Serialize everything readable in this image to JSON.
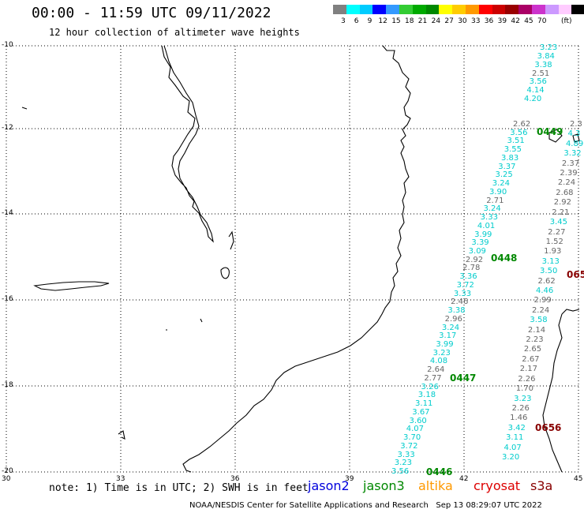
{
  "title": "00:00 - 11:59 UTC 09/11/2022",
  "subtitle": "12 hour collection of altimeter wave heights",
  "note": "note: 1) Time is in UTC; 2) SWH is in feet",
  "footer": "NOAA/NESDIS Center for Satellite Applications and Research   Sep 13 08:29:07 UTC 2022",
  "satellites": [
    {
      "name": "jason2",
      "color": "#0000dd"
    },
    {
      "name": "jason3",
      "color": "#008800"
    },
    {
      "name": "altika",
      "color": "#ff9900"
    },
    {
      "name": "cryosat",
      "color": "#dd0000"
    },
    {
      "name": "s3a",
      "color": "#880000"
    }
  ],
  "legend": {
    "unit": "(ft)",
    "colors": [
      "#808080",
      "#00ffff",
      "#00ccff",
      "#0000ff",
      "#3399ff",
      "#33cc33",
      "#00aa00",
      "#008800",
      "#ffff00",
      "#ffcc00",
      "#ff9900",
      "#ff0000",
      "#cc0000",
      "#990000",
      "#aa0066",
      "#cc33cc",
      "#cc99ff",
      "#ffccff",
      "#000000"
    ],
    "labels": [
      "3",
      "6",
      "9",
      "12",
      "15",
      "18",
      "21",
      "24",
      "27",
      "30",
      "33",
      "36",
      "39",
      "42",
      "45",
      "70"
    ]
  },
  "lat_labels": [
    "-10",
    "-12",
    "-14",
    "-16",
    "-18",
    "-20"
  ],
  "lon_labels": [
    "30",
    "33",
    "36",
    "39",
    "42",
    "45"
  ],
  "passes": [
    {
      "id": "0449",
      "color": "#008800"
    },
    {
      "id": "0448",
      "color": "#008800"
    },
    {
      "id": "0447",
      "color": "#008800"
    },
    {
      "id": "0446",
      "color": "#008800"
    },
    {
      "id": "0656",
      "color": "#880000"
    },
    {
      "id": "065",
      "color": "#880000"
    }
  ],
  "track_a": [
    {
      "v": "3.23",
      "c": "#00cccc"
    },
    {
      "v": "3.84",
      "c": "#00cccc"
    },
    {
      "v": "3.38",
      "c": "#00cccc"
    },
    {
      "v": "2.51",
      "c": "#666666"
    },
    {
      "v": "3.56",
      "c": "#00cccc"
    },
    {
      "v": "4.14",
      "c": "#00cccc"
    },
    {
      "v": "4.20",
      "c": "#00cccc"
    }
  ],
  "track_b": [
    {
      "v": "2.62",
      "c": "#666666"
    },
    {
      "v": "3.56",
      "c": "#00cccc"
    },
    {
      "v": "3.51",
      "c": "#00cccc"
    },
    {
      "v": "3.55",
      "c": "#00cccc"
    },
    {
      "v": "3.83",
      "c": "#00cccc"
    },
    {
      "v": "3.37",
      "c": "#00cccc"
    },
    {
      "v": "3.25",
      "c": "#00cccc"
    },
    {
      "v": "3.24",
      "c": "#00cccc"
    },
    {
      "v": "3.90",
      "c": "#00cccc"
    },
    {
      "v": "2.71",
      "c": "#666666"
    },
    {
      "v": "3.24",
      "c": "#00cccc"
    },
    {
      "v": "3.33",
      "c": "#00cccc"
    },
    {
      "v": "4.01",
      "c": "#00cccc"
    },
    {
      "v": "3.99",
      "c": "#00cccc"
    },
    {
      "v": "3.39",
      "c": "#00cccc"
    },
    {
      "v": "3.09",
      "c": "#00cccc"
    },
    {
      "v": "2.92",
      "c": "#666666"
    },
    {
      "v": "2.78",
      "c": "#666666"
    },
    {
      "v": "3.36",
      "c": "#00cccc"
    },
    {
      "v": "3.72",
      "c": "#00cccc"
    },
    {
      "v": "3.33",
      "c": "#00cccc"
    },
    {
      "v": "2.46",
      "c": "#666666"
    },
    {
      "v": "3.38",
      "c": "#00cccc"
    },
    {
      "v": "2.96",
      "c": "#666666"
    },
    {
      "v": "3.24",
      "c": "#00cccc"
    },
    {
      "v": "3.17",
      "c": "#00cccc"
    },
    {
      "v": "3.99",
      "c": "#00cccc"
    },
    {
      "v": "3.23",
      "c": "#00cccc"
    },
    {
      "v": "4.08",
      "c": "#00cccc"
    },
    {
      "v": "2.64",
      "c": "#666666"
    },
    {
      "v": "2.77",
      "c": "#666666"
    },
    {
      "v": "3.26",
      "c": "#00cccc"
    },
    {
      "v": "3.18",
      "c": "#00cccc"
    },
    {
      "v": "3.11",
      "c": "#00cccc"
    },
    {
      "v": "3.67",
      "c": "#00cccc"
    },
    {
      "v": "3.60",
      "c": "#00cccc"
    },
    {
      "v": "4.07",
      "c": "#00cccc"
    },
    {
      "v": "3.70",
      "c": "#00cccc"
    },
    {
      "v": "3.72",
      "c": "#00cccc"
    },
    {
      "v": "3.33",
      "c": "#00cccc"
    },
    {
      "v": "3.23",
      "c": "#00cccc"
    },
    {
      "v": "3.56",
      "c": "#00cccc"
    }
  ],
  "track_c": [
    {
      "v": "2.3",
      "c": "#666666"
    },
    {
      "v": "4.3",
      "c": "#00cccc"
    },
    {
      "v": "4.89",
      "c": "#00cccc"
    },
    {
      "v": "3.32",
      "c": "#00cccc"
    },
    {
      "v": "2.37",
      "c": "#666666"
    },
    {
      "v": "2.39",
      "c": "#666666"
    },
    {
      "v": "2.24",
      "c": "#666666"
    },
    {
      "v": "2.68",
      "c": "#666666"
    },
    {
      "v": "2.92",
      "c": "#666666"
    },
    {
      "v": "2.21",
      "c": "#666666"
    },
    {
      "v": "3.45",
      "c": "#00cccc"
    },
    {
      "v": "2.27",
      "c": "#666666"
    },
    {
      "v": "1.52",
      "c": "#666666"
    },
    {
      "v": "1.93",
      "c": "#666666"
    },
    {
      "v": "3.13",
      "c": "#00cccc"
    },
    {
      "v": "3.50",
      "c": "#00cccc"
    },
    {
      "v": "2.62",
      "c": "#666666"
    },
    {
      "v": "4.46",
      "c": "#00cccc"
    },
    {
      "v": "2.99",
      "c": "#666666"
    },
    {
      "v": "2.24",
      "c": "#666666"
    },
    {
      "v": "3.58",
      "c": "#00cccc"
    },
    {
      "v": "2.14",
      "c": "#666666"
    },
    {
      "v": "2.23",
      "c": "#666666"
    },
    {
      "v": "2.65",
      "c": "#666666"
    },
    {
      "v": "2.67",
      "c": "#666666"
    },
    {
      "v": "2.17",
      "c": "#666666"
    },
    {
      "v": "2.26",
      "c": "#666666"
    },
    {
      "v": "1.70",
      "c": "#666666"
    },
    {
      "v": "3.23",
      "c": "#00cccc"
    },
    {
      "v": "2.26",
      "c": "#666666"
    },
    {
      "v": "1.46",
      "c": "#666666"
    },
    {
      "v": "3.42",
      "c": "#00cccc"
    },
    {
      "v": "3.11",
      "c": "#00cccc"
    },
    {
      "v": "4.07",
      "c": "#00cccc"
    },
    {
      "v": "3.20",
      "c": "#00cccc"
    }
  ]
}
